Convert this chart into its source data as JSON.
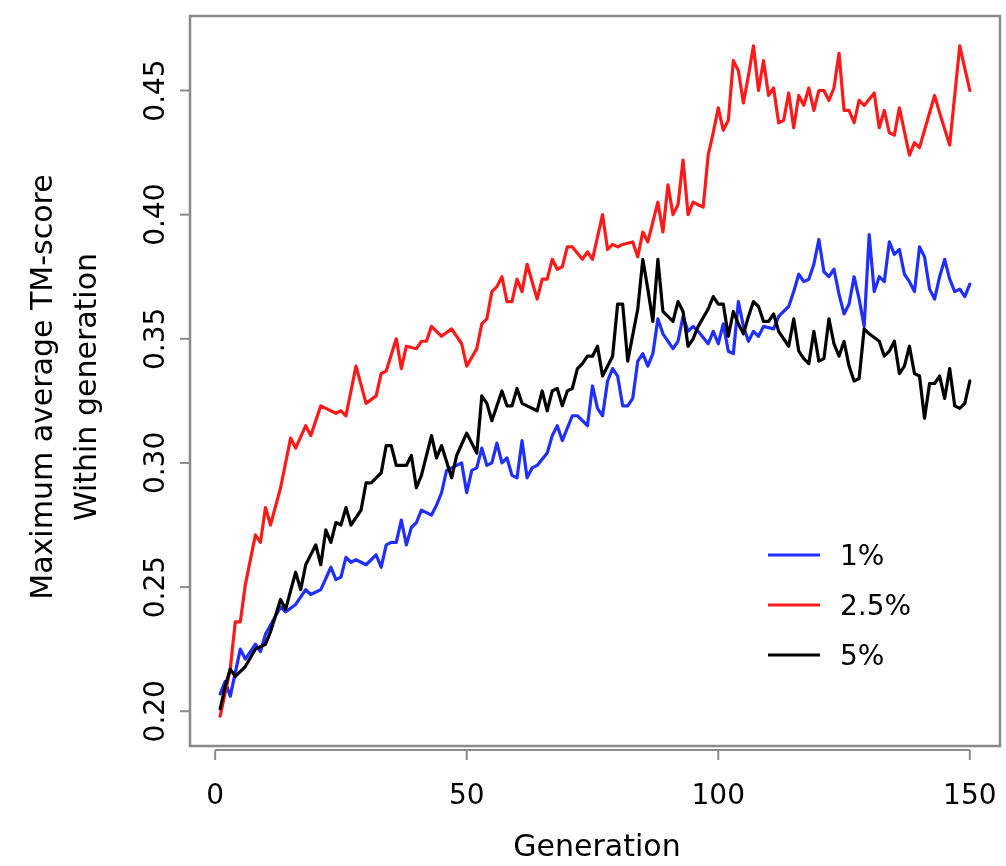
{
  "chart_data": {
    "type": "line",
    "xlabel": "Generation",
    "ylabel": "Maximum average TM-score\nWithin generation",
    "xlim": [
      -5,
      156
    ],
    "xticks": [
      0,
      50,
      100,
      150
    ],
    "ylim": [
      0.186,
      0.48
    ],
    "yticks": [
      {
        "value": 0.2,
        "label": "0.20"
      },
      {
        "value": 0.25,
        "label": "0.25"
      },
      {
        "value": 0.3,
        "label": "0.30"
      },
      {
        "value": 0.35,
        "label": "0.35"
      },
      {
        "value": 0.4,
        "label": "0.40"
      },
      {
        "value": 0.45,
        "label": "0.45"
      }
    ],
    "grid": false,
    "legend": "bottom right",
    "line_style": "solid",
    "series": [
      {
        "name": "1%",
        "color": "#1f2fff",
        "x": [
          1,
          2,
          3,
          5,
          6,
          8,
          9,
          10,
          13,
          14,
          16,
          18,
          19,
          21,
          23,
          24,
          25,
          26,
          27,
          28,
          30,
          32,
          33,
          34,
          35,
          36,
          37,
          38,
          39,
          40,
          41,
          43,
          44,
          45,
          46,
          47,
          49,
          50,
          51,
          52,
          53,
          54,
          55,
          56,
          57,
          58,
          59,
          60,
          61,
          62,
          63,
          64,
          66,
          67,
          68,
          69,
          70,
          71,
          72,
          74,
          75,
          76,
          77,
          78,
          79,
          80,
          81,
          82,
          83,
          84,
          85,
          86,
          87,
          88,
          89,
          91,
          92,
          93,
          94,
          95,
          96,
          98,
          99,
          100,
          101,
          102,
          103,
          104,
          105,
          106,
          107,
          108,
          109,
          111,
          112,
          114,
          115,
          116,
          117,
          118,
          119,
          120,
          121,
          122,
          123,
          124,
          125,
          126,
          127,
          128,
          129,
          130,
          131,
          132,
          133,
          134,
          135,
          136,
          137,
          138,
          139,
          140,
          141,
          142,
          143,
          144,
          145,
          146,
          147,
          148,
          149,
          150
        ],
        "values": [
          0.207,
          0.212,
          0.206,
          0.225,
          0.221,
          0.227,
          0.224,
          0.231,
          0.242,
          0.24,
          0.243,
          0.249,
          0.247,
          0.249,
          0.258,
          0.253,
          0.254,
          0.262,
          0.26,
          0.261,
          0.259,
          0.263,
          0.258,
          0.267,
          0.268,
          0.268,
          0.277,
          0.267,
          0.274,
          0.276,
          0.281,
          0.279,
          0.283,
          0.288,
          0.297,
          0.298,
          0.3,
          0.288,
          0.297,
          0.298,
          0.306,
          0.299,
          0.3,
          0.308,
          0.3,
          0.302,
          0.295,
          0.294,
          0.309,
          0.294,
          0.298,
          0.299,
          0.304,
          0.311,
          0.315,
          0.309,
          0.314,
          0.319,
          0.319,
          0.315,
          0.331,
          0.322,
          0.319,
          0.333,
          0.338,
          0.335,
          0.323,
          0.323,
          0.326,
          0.341,
          0.344,
          0.339,
          0.344,
          0.358,
          0.352,
          0.346,
          0.349,
          0.359,
          0.353,
          0.355,
          0.353,
          0.348,
          0.353,
          0.348,
          0.356,
          0.345,
          0.344,
          0.365,
          0.355,
          0.349,
          0.353,
          0.351,
          0.355,
          0.354,
          0.359,
          0.363,
          0.369,
          0.376,
          0.373,
          0.374,
          0.38,
          0.39,
          0.377,
          0.375,
          0.378,
          0.368,
          0.36,
          0.364,
          0.375,
          0.366,
          0.355,
          0.392,
          0.369,
          0.375,
          0.373,
          0.389,
          0.384,
          0.386,
          0.376,
          0.373,
          0.369,
          0.387,
          0.383,
          0.37,
          0.366,
          0.375,
          0.382,
          0.374,
          0.369,
          0.37,
          0.367,
          0.372
        ]
      },
      {
        "name": "2.5%",
        "color": "#ff1a1a",
        "x": [
          1,
          3,
          4,
          5,
          6,
          8,
          9,
          10,
          11,
          13,
          15,
          16,
          18,
          19,
          21,
          22,
          24,
          25,
          26,
          28,
          30,
          32,
          33,
          34,
          36,
          37,
          38,
          40,
          41,
          42,
          43,
          45,
          47,
          49,
          50,
          52,
          53,
          54,
          55,
          56,
          57,
          58,
          59,
          60,
          61,
          62,
          64,
          65,
          66,
          67,
          68,
          69,
          70,
          71,
          73,
          74,
          75,
          77,
          78,
          79,
          80,
          81,
          83,
          84,
          85,
          86,
          88,
          89,
          90,
          91,
          92,
          93,
          94,
          95,
          96,
          97,
          98,
          99,
          100,
          101,
          102,
          103,
          104,
          105,
          106,
          107,
          108,
          109,
          110,
          111,
          112,
          113,
          114,
          115,
          116,
          117,
          118,
          119,
          120,
          121,
          122,
          123,
          124,
          125,
          126,
          127,
          128,
          129,
          131,
          132,
          133,
          134,
          135,
          136,
          138,
          139,
          140,
          141,
          143,
          144,
          146,
          148,
          150
        ],
        "values": [
          0.198,
          0.217,
          0.236,
          0.236,
          0.251,
          0.271,
          0.268,
          0.282,
          0.275,
          0.29,
          0.31,
          0.306,
          0.315,
          0.311,
          0.323,
          0.322,
          0.32,
          0.321,
          0.319,
          0.339,
          0.324,
          0.327,
          0.336,
          0.337,
          0.35,
          0.338,
          0.347,
          0.346,
          0.349,
          0.349,
          0.355,
          0.351,
          0.354,
          0.348,
          0.339,
          0.346,
          0.356,
          0.358,
          0.369,
          0.371,
          0.375,
          0.365,
          0.365,
          0.374,
          0.369,
          0.38,
          0.366,
          0.374,
          0.374,
          0.382,
          0.378,
          0.379,
          0.387,
          0.387,
          0.382,
          0.385,
          0.382,
          0.4,
          0.386,
          0.388,
          0.387,
          0.388,
          0.389,
          0.383,
          0.393,
          0.389,
          0.405,
          0.393,
          0.412,
          0.4,
          0.404,
          0.422,
          0.4,
          0.405,
          0.404,
          0.403,
          0.424,
          0.433,
          0.443,
          0.434,
          0.438,
          0.462,
          0.458,
          0.445,
          0.456,
          0.468,
          0.45,
          0.462,
          0.448,
          0.451,
          0.437,
          0.438,
          0.449,
          0.435,
          0.448,
          0.444,
          0.451,
          0.442,
          0.45,
          0.45,
          0.446,
          0.451,
          0.465,
          0.442,
          0.442,
          0.437,
          0.446,
          0.444,
          0.449,
          0.435,
          0.442,
          0.433,
          0.432,
          0.443,
          0.424,
          0.429,
          0.427,
          0.434,
          0.448,
          0.441,
          0.428,
          0.468,
          0.45
        ]
      },
      {
        "name": "5%",
        "color": "#000000",
        "x": [
          1,
          2,
          3,
          4,
          6,
          8,
          10,
          11,
          13,
          14,
          16,
          17,
          18,
          20,
          21,
          22,
          23,
          24,
          25,
          26,
          27,
          29,
          30,
          31,
          33,
          34,
          35,
          36,
          38,
          39,
          40,
          41,
          43,
          44,
          45,
          47,
          48,
          50,
          52,
          53,
          54,
          55,
          57,
          58,
          59,
          60,
          61,
          62,
          64,
          65,
          66,
          67,
          68,
          69,
          70,
          71,
          72,
          73,
          74,
          75,
          76,
          77,
          79,
          80,
          81,
          82,
          84,
          85,
          86,
          87,
          88,
          89,
          91,
          92,
          93,
          94,
          95,
          96,
          98,
          99,
          100,
          101,
          102,
          103,
          104,
          105,
          106,
          107,
          108,
          109,
          110,
          111,
          112,
          114,
          115,
          116,
          117,
          118,
          119,
          120,
          121,
          122,
          123,
          124,
          125,
          126,
          127,
          128,
          129,
          130,
          132,
          133,
          134,
          135,
          136,
          137,
          138,
          139,
          140,
          141,
          142,
          143,
          144,
          145,
          146,
          147,
          148,
          149,
          150
        ],
        "values": [
          0.201,
          0.21,
          0.217,
          0.214,
          0.218,
          0.225,
          0.227,
          0.232,
          0.245,
          0.241,
          0.256,
          0.249,
          0.259,
          0.267,
          0.259,
          0.273,
          0.268,
          0.276,
          0.275,
          0.282,
          0.275,
          0.281,
          0.292,
          0.292,
          0.296,
          0.307,
          0.307,
          0.299,
          0.299,
          0.303,
          0.29,
          0.295,
          0.311,
          0.302,
          0.307,
          0.294,
          0.303,
          0.312,
          0.304,
          0.327,
          0.324,
          0.317,
          0.329,
          0.323,
          0.323,
          0.33,
          0.324,
          0.323,
          0.321,
          0.329,
          0.321,
          0.329,
          0.33,
          0.323,
          0.329,
          0.33,
          0.338,
          0.34,
          0.343,
          0.343,
          0.347,
          0.335,
          0.343,
          0.364,
          0.364,
          0.341,
          0.362,
          0.382,
          0.37,
          0.357,
          0.382,
          0.361,
          0.357,
          0.365,
          0.361,
          0.347,
          0.35,
          0.355,
          0.362,
          0.367,
          0.364,
          0.364,
          0.351,
          0.361,
          0.356,
          0.352,
          0.359,
          0.365,
          0.363,
          0.357,
          0.357,
          0.36,
          0.353,
          0.347,
          0.358,
          0.345,
          0.342,
          0.34,
          0.353,
          0.341,
          0.342,
          0.358,
          0.348,
          0.343,
          0.349,
          0.339,
          0.333,
          0.334,
          0.354,
          0.352,
          0.349,
          0.343,
          0.345,
          0.349,
          0.336,
          0.339,
          0.347,
          0.336,
          0.335,
          0.318,
          0.332,
          0.332,
          0.335,
          0.326,
          0.338,
          0.323,
          0.322,
          0.324,
          0.333
        ]
      }
    ]
  }
}
